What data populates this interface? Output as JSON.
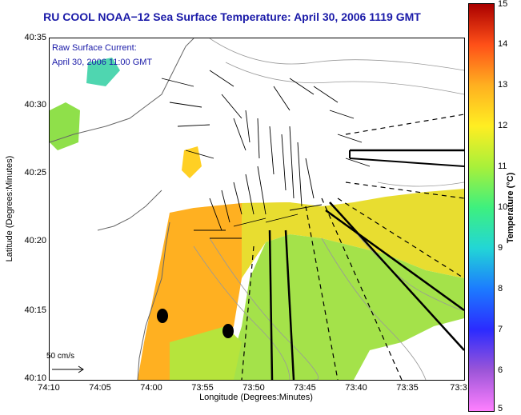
{
  "title": "RU COOL  NOAA−12  Sea Surface Temperature:  April 30, 2006 1119 GMT",
  "inset_label_1": "Raw Surface Current:",
  "inset_label_2": "April 30, 2006 11:00 GMT",
  "scale_label": "50 cm/s",
  "xlabel": "Longitude (Degrees:Minutes)",
  "ylabel": "Latitude (Degrees:Minutes)",
  "colorbar_label": "Temperature (°C)",
  "y_ticks": [
    "40:35",
    "40:30",
    "40:25",
    "40:20",
    "40:15",
    "40:10"
  ],
  "x_ticks": [
    "74:10",
    "74:05",
    "74:00",
    "73:55",
    "73:50",
    "73:45",
    "73:40",
    "73:35",
    "73:3"
  ],
  "colorbar_ticks": [
    "15",
    "14",
    "13",
    "12",
    "11",
    "10",
    "9",
    "8",
    "7",
    "6",
    "5"
  ],
  "colors": {
    "title": "#1a1aa8",
    "warm": "#ffb021",
    "mid": "#e8dd30",
    "cool": "#8fe04a",
    "cold": "#4fd6b0"
  }
}
